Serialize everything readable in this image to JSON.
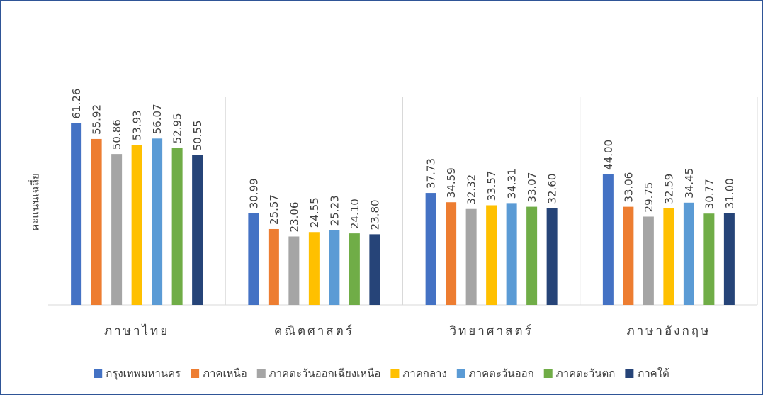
{
  "chart_data": {
    "type": "bar",
    "y_label": "คะแนนเฉลี่ย",
    "categories": [
      "ภาษาไทย",
      "คณิตศาสตร์",
      "วิทยาศาสตร์",
      "ภาษาอังกฤษ"
    ],
    "ylim": [
      0,
      70
    ],
    "series": [
      {
        "name": "กรุงเทพมหานคร",
        "color": "#4472c4",
        "values": [
          61.26,
          30.99,
          37.73,
          44.0
        ],
        "value_labels": [
          "61.26",
          "30.99",
          "37.73",
          "44.00"
        ]
      },
      {
        "name": "ภาคเหนือ",
        "color": "#ed7d31",
        "values": [
          55.92,
          25.57,
          34.59,
          33.06
        ],
        "value_labels": [
          "55.92",
          "25.57",
          "34.59",
          "33.06"
        ]
      },
      {
        "name": "ภาคตะวันออกเฉียงเหนือ",
        "color": "#a5a5a5",
        "values": [
          50.86,
          23.06,
          32.32,
          29.75
        ],
        "value_labels": [
          "50.86",
          "23.06",
          "32.32",
          "29.75"
        ]
      },
      {
        "name": "ภาคกลาง",
        "color": "#ffc000",
        "values": [
          53.93,
          24.55,
          33.57,
          32.59
        ],
        "value_labels": [
          "53.93",
          "24.55",
          "33.57",
          "32.59"
        ]
      },
      {
        "name": "ภาคตะวันออก",
        "color": "#5b9bd5",
        "values": [
          56.07,
          25.23,
          34.31,
          34.45
        ],
        "value_labels": [
          "56.07",
          "25.23",
          "34.31",
          "34.45"
        ]
      },
      {
        "name": "ภาคตะวันตก",
        "color": "#70ad47",
        "values": [
          52.95,
          24.1,
          33.07,
          30.77
        ],
        "value_labels": [
          "52.95",
          "24.10",
          "33.07",
          "30.77"
        ]
      },
      {
        "name": "ภาคใต้",
        "color": "#264478",
        "values": [
          50.55,
          23.8,
          32.6,
          31.0
        ],
        "value_labels": [
          "50.55",
          "23.80",
          "32.60",
          "31.00"
        ]
      }
    ]
  }
}
